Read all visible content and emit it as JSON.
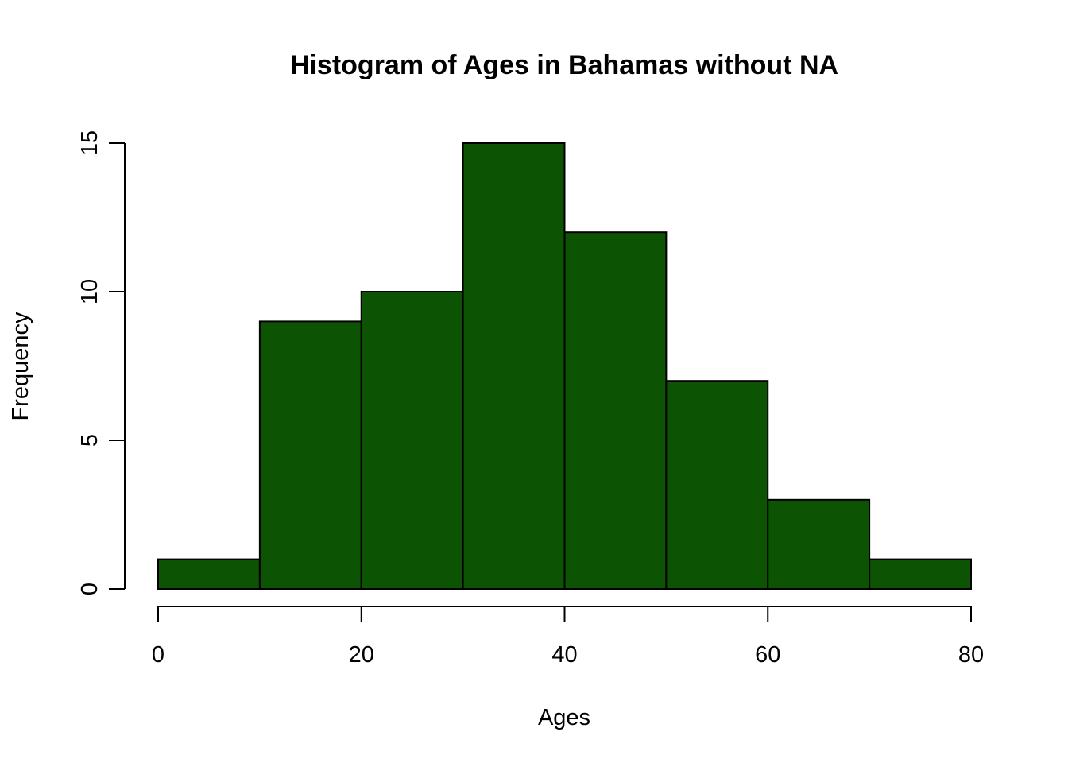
{
  "chart_data": {
    "type": "bar",
    "subtype": "histogram",
    "title": "Histogram of Ages in Bahamas without NA",
    "xlabel": "Ages",
    "ylabel": "Frequency",
    "bins": [
      {
        "from": 0,
        "to": 10,
        "count": 1
      },
      {
        "from": 10,
        "to": 20,
        "count": 9
      },
      {
        "from": 20,
        "to": 30,
        "count": 10
      },
      {
        "from": 30,
        "to": 40,
        "count": 15
      },
      {
        "from": 40,
        "to": 50,
        "count": 12
      },
      {
        "from": 50,
        "to": 60,
        "count": 7
      },
      {
        "from": 60,
        "to": 70,
        "count": 3
      },
      {
        "from": 70,
        "to": 80,
        "count": 1
      }
    ],
    "xlim": [
      0,
      80
    ],
    "ylim": [
      0,
      15
    ],
    "x_ticks": [
      0,
      20,
      40,
      60,
      80
    ],
    "y_ticks": [
      0,
      5,
      10,
      15
    ],
    "bar_color": "#0c5304",
    "bar_border_color": "#000000",
    "grid": false,
    "legend": "none"
  }
}
